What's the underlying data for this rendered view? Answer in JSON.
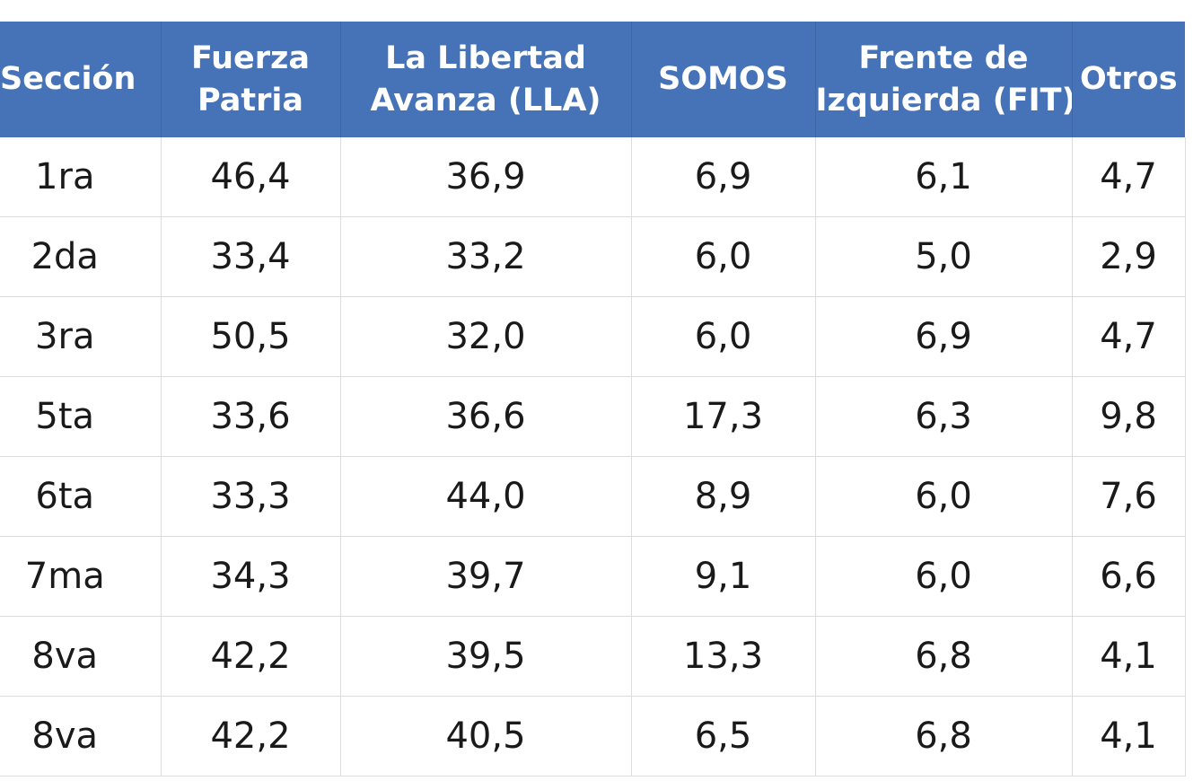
{
  "table": {
    "header": [
      [
        "Sección"
      ],
      [
        "Fuerza",
        "Patria"
      ],
      [
        "La Libertad",
        "Avanza (LLA)"
      ],
      [
        "SOMOS"
      ],
      [
        "Frente de",
        "Izquierda (FIT)"
      ],
      [
        "Otros"
      ]
    ],
    "header_color": "#4672b8",
    "rows": [
      [
        "1ra",
        "46,4",
        "36,9",
        "6,9",
        "6,1",
        "4,7"
      ],
      [
        "2da",
        "33,4",
        "33,2",
        "6,0",
        "5,0",
        "2,9"
      ],
      [
        "3ra",
        "50,5",
        "32,0",
        "6,0",
        "6,9",
        "4,7"
      ],
      [
        "5ta",
        "33,6",
        "36,6",
        "17,3",
        "6,3",
        "9,8"
      ],
      [
        "6ta",
        "33,3",
        "44,0",
        "8,9",
        "6,0",
        "7,6"
      ],
      [
        "7ma",
        "34,3",
        "39,7",
        "9,1",
        "6,0",
        "6,6"
      ],
      [
        "8va",
        "42,2",
        "39,5",
        "13,3",
        "6,8",
        "4,1"
      ],
      [
        "8va",
        "42,2",
        "40,5",
        "6,5",
        "6,8",
        "4,1"
      ]
    ]
  }
}
